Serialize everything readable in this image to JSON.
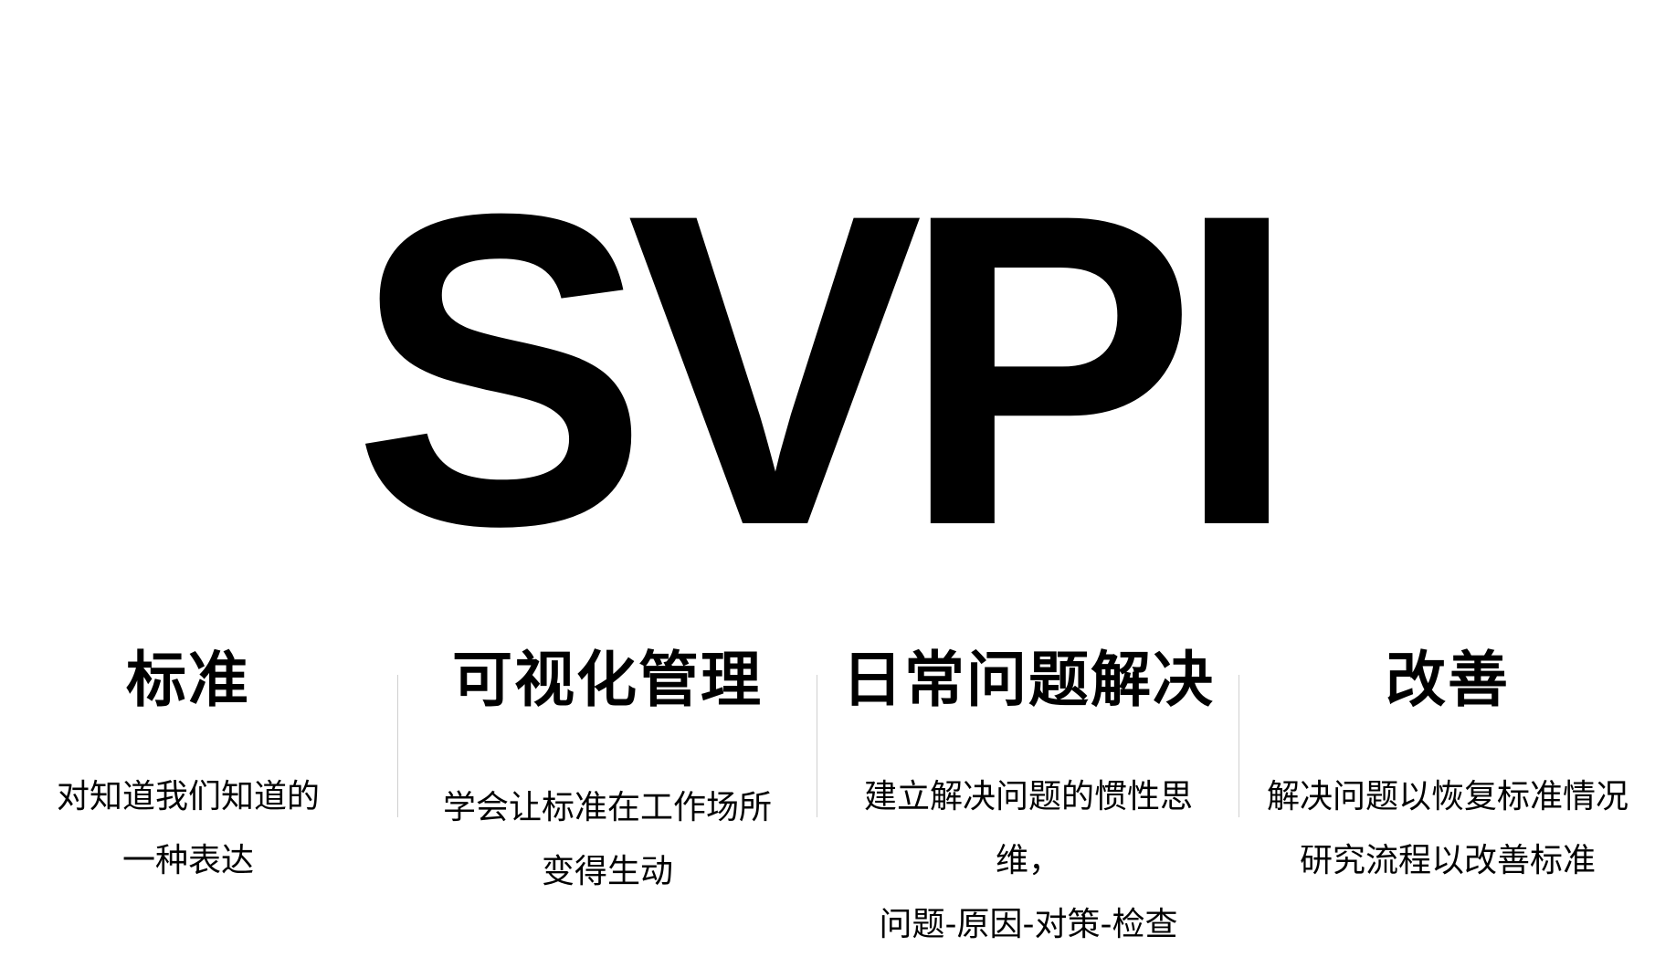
{
  "title": "SVPI",
  "columns": [
    {
      "heading": "标准",
      "lines": [
        "对知道我们知道的",
        "一种表达"
      ]
    },
    {
      "heading": "可视化管理",
      "lines": [
        "学会让标准在工作场所",
        "变得生动"
      ]
    },
    {
      "heading": "日常问题解决",
      "lines": [
        "建立解决问题的惯性思维，",
        "问题-原因-对策-检查"
      ]
    },
    {
      "heading": "改善",
      "lines": [
        "解决问题以恢复标准情况",
        "研究流程以改善标准"
      ]
    }
  ]
}
